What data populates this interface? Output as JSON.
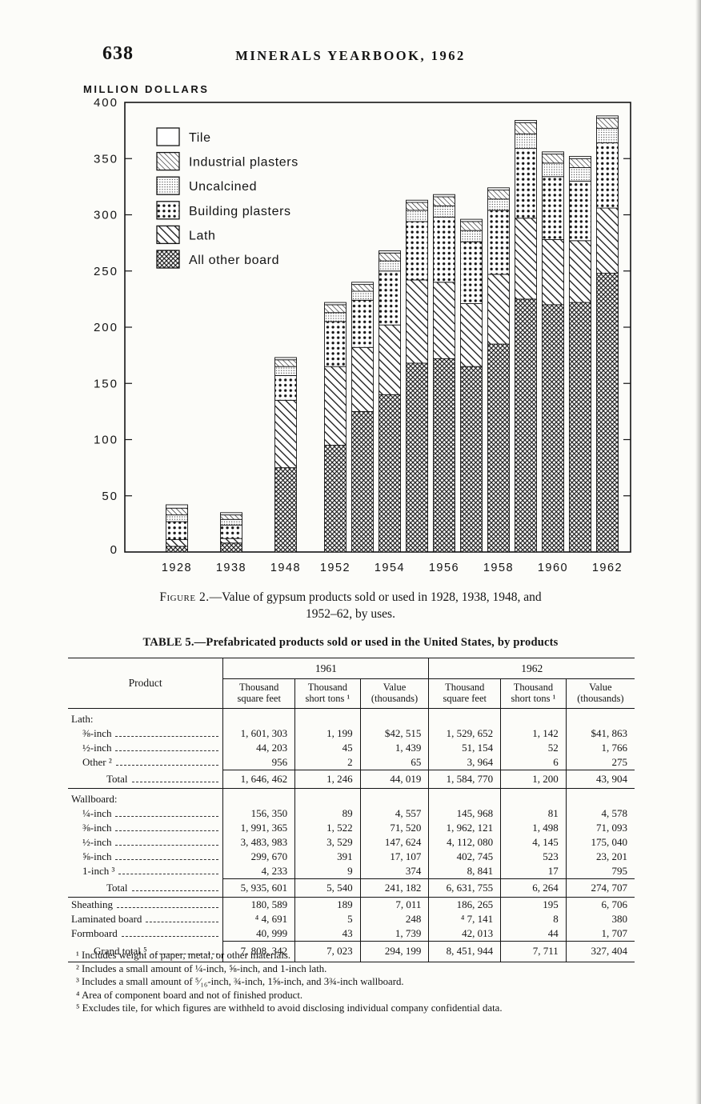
{
  "page": {
    "number": "638",
    "running_title": "MINERALS YEARBOOK, 1962"
  },
  "figure": {
    "caption_prefix": "Figure 2.",
    "caption_line1": "—Value of gypsum products sold or used in 1928, 1938, 1948, and",
    "caption_line2": "1952–62, by uses."
  },
  "chart_data": {
    "type": "bar",
    "stacked": true,
    "title": "Value of gypsum products sold or used in 1928, 1938, 1948, and 1952–62, by uses",
    "ylabel": "MILLION DOLLARS",
    "xlabel": "",
    "ylim": [
      0,
      400
    ],
    "ytick_step": 50,
    "grid": false,
    "legend_position": "upper-left-inside",
    "categories": [
      "1928",
      "1938",
      "1948",
      "1952",
      "1953",
      "1954",
      "1955",
      "1956",
      "1957",
      "1958",
      "1959",
      "1960",
      "1961",
      "1962"
    ],
    "x_tick_labels": [
      "1928",
      "1938",
      "1948",
      "1952",
      "1954",
      "1956",
      "1958",
      "1960",
      "1962"
    ],
    "series": [
      {
        "name": "All other board",
        "pattern": "board",
        "values": [
          5,
          8,
          75,
          95,
          125,
          140,
          168,
          172,
          165,
          185,
          225,
          220,
          222,
          248
        ]
      },
      {
        "name": "Lath",
        "pattern": "lath",
        "values": [
          6,
          4,
          60,
          70,
          57,
          62,
          74,
          68,
          56,
          62,
          72,
          58,
          55,
          58
        ]
      },
      {
        "name": "Building plasters",
        "pattern": "bplaster",
        "values": [
          16,
          12,
          22,
          40,
          42,
          48,
          52,
          58,
          55,
          57,
          62,
          56,
          53,
          58
        ]
      },
      {
        "name": "Uncalcined",
        "pattern": "uncalcined",
        "values": [
          6,
          5,
          8,
          8,
          8,
          9,
          10,
          10,
          10,
          10,
          13,
          12,
          12,
          13
        ]
      },
      {
        "name": "Industrial plasters",
        "pattern": "indplaster",
        "values": [
          6,
          4,
          6,
          7,
          6,
          7,
          7,
          8,
          8,
          8,
          10,
          8,
          8,
          9
        ]
      },
      {
        "name": "Tile",
        "pattern": "tile",
        "values": [
          3,
          2,
          2,
          2,
          2,
          2,
          2,
          2,
          2,
          2,
          2,
          2,
          2,
          2
        ]
      }
    ],
    "legend_order": [
      "Tile",
      "Industrial plasters",
      "Uncalcined",
      "Building plasters",
      "Lath",
      "All other board"
    ],
    "approx_totals": [
      42,
      35,
      173,
      222,
      240,
      268,
      313,
      318,
      296,
      324,
      384,
      356,
      352,
      388
    ]
  },
  "table": {
    "title": "TABLE 5.—Prefabricated products sold or used in the United States, by products",
    "product_header": "Product",
    "col_groups": [
      "1961",
      "1962"
    ],
    "sub_headers": [
      "Thousand square feet",
      "Thousand short tons ¹",
      "Value (thousands)"
    ],
    "rows": [
      {
        "type": "group",
        "label": "Lath:"
      },
      {
        "type": "item",
        "label": "⅜-inch",
        "values": [
          "1, 601, 303",
          "1, 199",
          "$42, 515",
          "1, 529, 652",
          "1, 142",
          "$41, 863"
        ]
      },
      {
        "type": "item",
        "label": "½-inch",
        "values": [
          "44, 203",
          "45",
          "1, 439",
          "51, 154",
          "52",
          "1, 766"
        ]
      },
      {
        "type": "item",
        "label": "Other ²",
        "values": [
          "956",
          "2",
          "65",
          "3, 964",
          "6",
          "275"
        ]
      },
      {
        "type": "total",
        "label": "Total",
        "values": [
          "1, 646, 462",
          "1, 246",
          "44, 019",
          "1, 584, 770",
          "1, 200",
          "43, 904"
        ]
      },
      {
        "type": "group",
        "label": "Wallboard:"
      },
      {
        "type": "item",
        "label": "¼-inch",
        "values": [
          "156, 350",
          "89",
          "4, 557",
          "145, 968",
          "81",
          "4, 578"
        ]
      },
      {
        "type": "item",
        "label": "⅜-inch",
        "values": [
          "1, 991, 365",
          "1, 522",
          "71, 520",
          "1, 962, 121",
          "1, 498",
          "71, 093"
        ]
      },
      {
        "type": "item",
        "label": "½-inch",
        "values": [
          "3, 483, 983",
          "3, 529",
          "147, 624",
          "4, 112, 080",
          "4, 145",
          "175, 040"
        ]
      },
      {
        "type": "item",
        "label": "⅝-inch",
        "values": [
          "299, 670",
          "391",
          "17, 107",
          "402, 745",
          "523",
          "23, 201"
        ]
      },
      {
        "type": "item",
        "label": "1-inch ³",
        "values": [
          "4, 233",
          "9",
          "374",
          "8, 841",
          "17",
          "795"
        ]
      },
      {
        "type": "total",
        "label": "Total",
        "values": [
          "5, 935, 601",
          "5, 540",
          "241, 182",
          "6, 631, 755",
          "6, 264",
          "274, 707"
        ]
      },
      {
        "type": "plain",
        "label": "Sheathing",
        "values": [
          "180, 589",
          "189",
          "7, 011",
          "186, 265",
          "195",
          "6, 706"
        ]
      },
      {
        "type": "plain",
        "label": "Laminated board",
        "values": [
          "⁴ 4, 691",
          "5",
          "248",
          "⁴ 7, 141",
          "8",
          "380"
        ]
      },
      {
        "type": "plain",
        "label": "Formboard",
        "values": [
          "40, 999",
          "43",
          "1, 739",
          "42, 013",
          "44",
          "1, 707"
        ]
      },
      {
        "type": "grand",
        "label": "Grand total ⁵",
        "values": [
          "7, 808, 342",
          "7, 023",
          "294, 199",
          "8, 451, 944",
          "7, 711",
          "327, 404"
        ]
      }
    ]
  },
  "footnotes": [
    {
      "mark": "¹",
      "text": "Includes weight of paper, metal, or other materials."
    },
    {
      "mark": "²",
      "text": "Includes a small amount of ¼-inch, ⅝-inch, and 1-inch lath."
    },
    {
      "mark": "³",
      "text": "Includes a small amount of ⁵⁄₁₆-inch, ¾-inch, 1⅝-inch, and 3¾-inch wallboard."
    },
    {
      "mark": "⁴",
      "text": "Area of component board and not of finished product."
    },
    {
      "mark": "⁵",
      "text": "Excludes tile, for which figures are withheld to avoid disclosing individual company confidential data."
    }
  ]
}
